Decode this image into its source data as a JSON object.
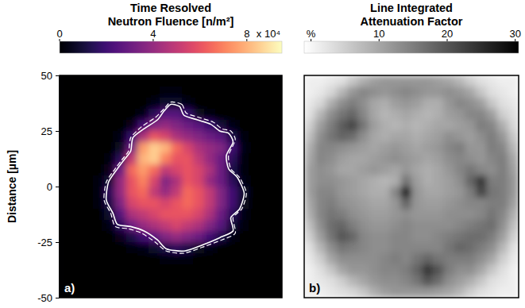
{
  "chart_data": [
    {
      "type": "heatmap",
      "title": [
        "Time Resolved",
        "Neutron Fluence [n/m²]"
      ],
      "ylabel": "Distance [µm]",
      "panel_label": "a)",
      "tick_labels": "y",
      "color": "magma",
      "xlim": [
        -50,
        50
      ],
      "ylim": [
        -50,
        50
      ],
      "yticks": [
        -50,
        -25,
        0,
        25,
        50
      ],
      "colorbar": {
        "range": [
          0,
          9.5
        ],
        "ticks": [
          0,
          4,
          8
        ],
        "multiplier_label": "x 10⁴"
      },
      "x": [
        -47.5,
        -42.5,
        -37.5,
        -32.5,
        -27.5,
        -22.5,
        -17.5,
        -12.5,
        -7.5,
        -2.5,
        2.5,
        7.5,
        12.5,
        17.5,
        22.5,
        27.5,
        32.5,
        37.5,
        42.5,
        47.5
      ],
      "y": [
        47.5,
        42.5,
        37.5,
        32.5,
        27.5,
        22.5,
        17.5,
        12.5,
        7.5,
        2.5,
        -2.5,
        -7.5,
        -12.5,
        -17.5,
        -22.5,
        -27.5,
        -32.5,
        -37.5,
        -42.5,
        -47.5
      ],
      "values": [
        [
          0,
          0,
          0,
          0,
          0,
          0,
          0,
          0,
          0,
          0,
          0,
          0,
          0,
          0,
          0,
          0,
          0,
          0,
          0,
          0
        ],
        [
          0,
          0,
          0,
          0,
          0,
          0,
          0,
          0,
          0.1,
          0.2,
          0.2,
          0.1,
          0,
          0,
          0,
          0,
          0,
          0,
          0,
          0
        ],
        [
          0,
          0,
          0,
          0,
          0,
          0,
          0,
          0.1,
          0.3,
          0.8,
          0.8,
          0.3,
          0.1,
          0,
          0,
          0,
          0,
          0,
          0,
          0
        ],
        [
          0,
          0,
          0,
          0,
          0,
          0,
          0.1,
          0.4,
          1.5,
          2.5,
          2.5,
          1.8,
          0.6,
          0.2,
          0,
          0,
          0,
          0,
          0,
          0
        ],
        [
          0,
          0,
          0,
          0,
          0,
          0.1,
          0.5,
          2.0,
          3.5,
          4.0,
          3.5,
          3.0,
          2.5,
          1.8,
          1.0,
          0.3,
          0,
          0,
          0,
          0
        ],
        [
          0,
          0,
          0,
          0,
          0.1,
          0.4,
          1.8,
          4.5,
          6.0,
          5.5,
          4.5,
          4.0,
          3.5,
          3.0,
          2.5,
          1.2,
          0.2,
          0,
          0,
          0
        ],
        [
          0,
          0,
          0,
          0,
          0.1,
          0.6,
          3.0,
          7.5,
          8.5,
          8.0,
          6.5,
          5.5,
          4.5,
          4.0,
          3.5,
          2.0,
          0.3,
          0,
          0,
          0
        ],
        [
          0,
          0,
          0,
          0,
          0.2,
          1.5,
          5.0,
          8.0,
          8.5,
          7.0,
          6.0,
          6.0,
          5.0,
          4.0,
          3.0,
          1.5,
          0.2,
          0,
          0,
          0
        ],
        [
          0,
          0,
          0,
          0.1,
          0.5,
          3.0,
          6.5,
          7.5,
          6.5,
          5.0,
          5.5,
          6.0,
          5.5,
          4.5,
          3.0,
          1.2,
          0.2,
          0,
          0,
          0
        ],
        [
          0,
          0,
          0,
          0.2,
          1.0,
          4.0,
          6.0,
          7.0,
          5.5,
          3.5,
          4.5,
          6.0,
          5.5,
          4.0,
          3.0,
          1.5,
          0.3,
          0,
          0,
          0
        ],
        [
          0,
          0,
          0,
          0.2,
          1.5,
          4.0,
          6.0,
          6.5,
          5.0,
          4.0,
          5.0,
          6.5,
          6.0,
          5.0,
          3.5,
          2.0,
          0.8,
          0.1,
          0,
          0
        ],
        [
          0,
          0,
          0,
          0.2,
          1.2,
          3.5,
          5.5,
          6.0,
          6.0,
          5.5,
          6.0,
          6.5,
          6.0,
          5.0,
          3.5,
          2.0,
          0.6,
          0.1,
          0,
          0
        ],
        [
          0,
          0,
          0,
          0.1,
          0.8,
          2.5,
          4.5,
          5.0,
          5.5,
          6.0,
          6.0,
          6.0,
          5.5,
          4.5,
          3.0,
          1.5,
          0.3,
          0,
          0,
          0
        ],
        [
          0,
          0,
          0,
          0,
          0.4,
          1.5,
          3.0,
          4.0,
          4.5,
          5.0,
          5.5,
          5.0,
          4.5,
          3.5,
          2.5,
          1.0,
          0.2,
          0,
          0,
          0
        ],
        [
          0,
          0,
          0,
          0,
          0.1,
          0.5,
          1.2,
          2.0,
          2.5,
          3.5,
          4.0,
          3.5,
          3.0,
          2.0,
          1.2,
          0.4,
          0.1,
          0,
          0,
          0
        ],
        [
          0,
          0,
          0,
          0,
          0,
          0.1,
          0.2,
          0.4,
          0.8,
          1.2,
          1.5,
          1.2,
          0.6,
          0.3,
          0.1,
          0,
          0,
          0,
          0,
          0
        ],
        [
          0,
          0,
          0,
          0,
          0,
          0,
          0,
          0.1,
          0.1,
          0.2,
          0.2,
          0.2,
          0.1,
          0,
          0,
          0,
          0,
          0,
          0,
          0
        ],
        [
          0,
          0,
          0,
          0,
          0,
          0,
          0,
          0,
          0,
          0,
          0,
          0,
          0,
          0,
          0,
          0,
          0,
          0,
          0,
          0
        ],
        [
          0,
          0,
          0,
          0,
          0,
          0,
          0,
          0,
          0,
          0,
          0,
          0,
          0,
          0,
          0,
          0,
          0,
          0,
          0,
          0
        ],
        [
          0,
          0,
          0,
          0,
          0,
          0,
          0,
          0,
          0,
          0,
          0,
          0,
          0,
          0,
          0,
          0,
          0,
          0,
          0,
          0
        ]
      ],
      "contours": [
        {
          "line_style": "solid",
          "x": [
            0,
            4,
            6,
            12,
            18,
            22,
            26,
            28,
            25,
            26,
            30,
            33,
            31,
            27,
            28,
            22,
            15,
            6,
            -2,
            -6,
            -12,
            -18,
            -24,
            -26,
            -29,
            -28,
            -24,
            -21,
            -18,
            -17,
            -12,
            -6,
            -3
          ],
          "y": [
            37,
            36,
            32,
            30,
            28,
            25,
            24,
            20,
            14,
            8,
            4,
            -3,
            -10,
            -14,
            -20,
            -23,
            -26,
            -29,
            -28,
            -24,
            -20,
            -18,
            -17,
            -12,
            -6,
            2,
            8,
            12,
            16,
            22,
            26,
            30,
            34
          ]
        },
        {
          "line_style": "dashed",
          "x": [
            0,
            5,
            7,
            13,
            19,
            23,
            27,
            29,
            26,
            27,
            31,
            34,
            32,
            28,
            29,
            23,
            15,
            6,
            -2,
            -7,
            -13,
            -19,
            -25,
            -27,
            -30,
            -29,
            -25,
            -22,
            -19,
            -18,
            -13,
            -7,
            -3
          ],
          "y": [
            38,
            37,
            33,
            31,
            29,
            26,
            25,
            21,
            14,
            8,
            4,
            -3,
            -10,
            -14,
            -21,
            -24,
            -27,
            -30,
            -29,
            -25,
            -21,
            -19,
            -18,
            -12,
            -6,
            2,
            8,
            12,
            16,
            22,
            27,
            31,
            35
          ]
        }
      ]
    },
    {
      "type": "heatmap",
      "title": [
        "Line Integrated",
        "Attenuation Factor"
      ],
      "panel_label": "b)",
      "tick_labels": false,
      "colors": [
        "#ffffff",
        "#000000"
      ],
      "xlim": [
        -50,
        50
      ],
      "ylim": [
        -50,
        50
      ],
      "colorbar": {
        "range": [
          -1,
          30.5
        ],
        "ticks": [
          {
            "value": 0,
            "label": "%"
          },
          10,
          20,
          30
        ]
      },
      "x": [
        -47.5,
        -42.5,
        -37.5,
        -32.5,
        -27.5,
        -22.5,
        -17.5,
        -12.5,
        -7.5,
        -2.5,
        2.5,
        7.5,
        12.5,
        17.5,
        22.5,
        27.5,
        32.5,
        37.5,
        42.5,
        47.5
      ],
      "y": [
        47.5,
        42.5,
        37.5,
        32.5,
        27.5,
        22.5,
        17.5,
        12.5,
        7.5,
        2.5,
        -2.5,
        -7.5,
        -12.5,
        -17.5,
        -22.5,
        -27.5,
        -32.5,
        -37.5,
        -42.5,
        -47.5
      ],
      "values": [
        [
          1,
          1,
          2,
          3,
          6,
          9,
          11,
          12,
          12,
          12,
          12,
          12,
          11,
          10,
          8,
          5,
          3,
          2,
          1,
          1
        ],
        [
          1,
          2,
          4,
          8,
          12,
          14,
          13,
          12,
          13,
          14,
          13,
          12,
          12,
          13,
          12,
          10,
          6,
          3,
          2,
          1
        ],
        [
          2,
          4,
          9,
          13,
          15,
          13,
          10,
          9,
          11,
          12,
          11,
          9,
          9,
          12,
          14,
          13,
          11,
          6,
          3,
          2
        ],
        [
          3,
          8,
          13,
          16,
          18,
          14,
          10,
          8,
          9,
          10,
          9,
          8,
          9,
          11,
          12,
          14,
          14,
          11,
          5,
          3
        ],
        [
          5,
          11,
          15,
          19,
          22,
          16,
          11,
          9,
          8,
          9,
          8,
          9,
          10,
          10,
          11,
          12,
          15,
          14,
          9,
          4
        ],
        [
          7,
          13,
          16,
          18,
          17,
          13,
          10,
          9,
          10,
          10,
          9,
          10,
          11,
          13,
          12,
          11,
          13,
          15,
          12,
          6
        ],
        [
          9,
          14,
          14,
          13,
          12,
          11,
          10,
          11,
          12,
          11,
          10,
          11,
          12,
          14,
          15,
          12,
          12,
          15,
          14,
          8
        ],
        [
          10,
          14,
          13,
          11,
          10,
          10,
          11,
          12,
          13,
          12,
          11,
          10,
          11,
          13,
          14,
          13,
          12,
          14,
          15,
          10
        ],
        [
          11,
          13,
          12,
          10,
          10,
          11,
          12,
          11,
          10,
          12,
          10,
          9,
          10,
          12,
          14,
          16,
          14,
          13,
          15,
          11
        ],
        [
          11,
          13,
          13,
          12,
          11,
          10,
          9,
          8,
          9,
          16,
          11,
          9,
          10,
          11,
          13,
          18,
          24,
          15,
          15,
          12
        ],
        [
          11,
          14,
          14,
          12,
          11,
          10,
          9,
          9,
          14,
          28,
          12,
          10,
          10,
          11,
          12,
          15,
          22,
          16,
          15,
          12
        ],
        [
          10,
          14,
          15,
          13,
          12,
          11,
          10,
          10,
          12,
          18,
          12,
          11,
          11,
          12,
          13,
          14,
          14,
          15,
          15,
          11
        ],
        [
          9,
          14,
          16,
          15,
          13,
          12,
          11,
          11,
          12,
          13,
          12,
          12,
          12,
          13,
          13,
          13,
          14,
          16,
          14,
          9
        ],
        [
          7,
          13,
          17,
          18,
          15,
          13,
          12,
          12,
          13,
          14,
          13,
          13,
          13,
          13,
          14,
          15,
          16,
          17,
          13,
          7
        ],
        [
          5,
          11,
          16,
          20,
          18,
          14,
          13,
          13,
          14,
          14,
          13,
          13,
          14,
          15,
          16,
          17,
          17,
          15,
          11,
          5
        ],
        [
          3,
          8,
          13,
          16,
          15,
          14,
          13,
          13,
          14,
          14,
          14,
          14,
          14,
          16,
          18,
          17,
          15,
          13,
          8,
          3
        ],
        [
          2,
          5,
          10,
          13,
          13,
          13,
          13,
          14,
          15,
          14,
          16,
          18,
          16,
          15,
          15,
          15,
          13,
          10,
          5,
          2
        ],
        [
          1,
          3,
          6,
          10,
          12,
          12,
          13,
          14,
          14,
          15,
          18,
          24,
          20,
          15,
          13,
          13,
          10,
          6,
          3,
          1
        ],
        [
          1,
          2,
          3,
          5,
          8,
          10,
          12,
          13,
          13,
          14,
          16,
          20,
          17,
          13,
          11,
          9,
          6,
          3,
          2,
          1
        ],
        [
          1,
          1,
          2,
          3,
          4,
          6,
          9,
          11,
          12,
          12,
          12,
          12,
          11,
          10,
          8,
          5,
          3,
          2,
          1,
          1
        ]
      ]
    }
  ]
}
